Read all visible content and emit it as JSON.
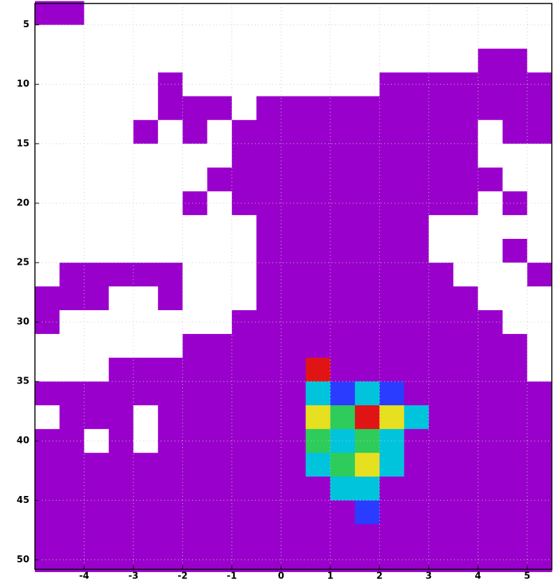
{
  "chart_data": {
    "type": "heatmap",
    "x": [
      -4.75,
      -4.25,
      -3.75,
      -3.25,
      -2.75,
      -2.25,
      -1.75,
      -1.25,
      -0.75,
      -0.25,
      0.25,
      0.75,
      1.25,
      1.75,
      2.25,
      2.75,
      3.25,
      3.75,
      4.25,
      4.75,
      5.25
    ],
    "y": [
      4,
      6,
      8,
      10,
      12,
      14,
      16,
      18,
      20,
      22,
      24,
      26,
      28,
      30,
      32,
      34,
      36,
      38,
      40,
      42,
      44,
      46,
      48,
      50
    ],
    "cell_width": 0.5,
    "cell_height": 2,
    "values": [
      [
        1,
        1,
        0,
        0,
        0,
        0,
        0,
        0,
        0,
        0,
        0,
        0,
        0,
        0,
        0,
        0,
        0,
        0,
        0,
        0,
        0
      ],
      [
        0,
        0,
        0,
        0,
        0,
        0,
        0,
        0,
        0,
        0,
        0,
        0,
        0,
        0,
        0,
        0,
        0,
        0,
        0,
        0,
        0
      ],
      [
        0,
        0,
        0,
        0,
        0,
        0,
        0,
        0,
        0,
        0,
        0,
        0,
        0,
        0,
        0,
        0,
        0,
        0,
        1,
        1,
        0
      ],
      [
        0,
        0,
        0,
        0,
        0,
        1,
        0,
        0,
        0,
        0,
        0,
        0,
        0,
        0,
        1,
        1,
        1,
        1,
        1,
        1,
        1
      ],
      [
        0,
        0,
        0,
        0,
        0,
        1,
        1,
        1,
        0,
        1,
        1,
        1,
        1,
        1,
        1,
        1,
        1,
        1,
        1,
        1,
        1
      ],
      [
        0,
        0,
        0,
        0,
        1,
        0,
        1,
        0,
        1,
        1,
        1,
        1,
        1,
        1,
        1,
        1,
        1,
        1,
        0,
        1,
        1
      ],
      [
        0,
        0,
        0,
        0,
        0,
        0,
        0,
        0,
        1,
        1,
        1,
        1,
        1,
        1,
        1,
        1,
        1,
        1,
        0,
        0,
        0
      ],
      [
        0,
        0,
        0,
        0,
        0,
        0,
        0,
        1,
        1,
        1,
        1,
        1,
        1,
        1,
        1,
        1,
        1,
        1,
        1,
        0,
        0
      ],
      [
        0,
        0,
        0,
        0,
        0,
        0,
        1,
        0,
        1,
        1,
        1,
        1,
        1,
        1,
        1,
        1,
        1,
        1,
        0,
        1,
        0
      ],
      [
        0,
        0,
        0,
        0,
        0,
        0,
        0,
        0,
        0,
        1,
        1,
        1,
        1,
        1,
        1,
        1,
        0,
        0,
        0,
        0,
        0
      ],
      [
        0,
        0,
        0,
        0,
        0,
        0,
        0,
        0,
        0,
        1,
        1,
        1,
        1,
        1,
        1,
        1,
        0,
        0,
        0,
        1,
        0
      ],
      [
        0,
        1,
        1,
        1,
        1,
        1,
        0,
        0,
        0,
        1,
        1,
        1,
        1,
        1,
        1,
        1,
        1,
        0,
        0,
        0,
        1
      ],
      [
        1,
        1,
        1,
        0,
        0,
        1,
        0,
        0,
        0,
        1,
        1,
        1,
        1,
        1,
        1,
        1,
        1,
        1,
        0,
        0,
        0
      ],
      [
        1,
        0,
        0,
        0,
        0,
        0,
        0,
        0,
        1,
        1,
        1,
        1,
        1,
        1,
        1,
        1,
        1,
        1,
        1,
        0,
        0
      ],
      [
        0,
        0,
        0,
        0,
        0,
        0,
        1,
        1,
        1,
        1,
        1,
        1,
        1,
        1,
        1,
        1,
        1,
        1,
        1,
        1,
        0
      ],
      [
        0,
        0,
        0,
        1,
        1,
        1,
        1,
        1,
        1,
        1,
        1,
        6,
        1,
        1,
        1,
        1,
        1,
        1,
        1,
        1,
        0
      ],
      [
        1,
        1,
        1,
        1,
        1,
        1,
        1,
        1,
        1,
        1,
        1,
        3,
        2,
        3,
        2,
        1,
        1,
        1,
        1,
        1,
        1
      ],
      [
        0,
        1,
        1,
        1,
        0,
        1,
        1,
        1,
        1,
        1,
        1,
        5,
        4,
        6,
        5,
        3,
        1,
        1,
        1,
        1,
        1
      ],
      [
        1,
        1,
        0,
        1,
        0,
        1,
        1,
        1,
        1,
        1,
        1,
        4,
        3,
        4,
        3,
        1,
        1,
        1,
        1,
        1,
        1
      ],
      [
        1,
        1,
        1,
        1,
        1,
        1,
        1,
        1,
        1,
        1,
        1,
        3,
        4,
        5,
        3,
        1,
        1,
        1,
        1,
        1,
        1
      ],
      [
        1,
        1,
        1,
        1,
        1,
        1,
        1,
        1,
        1,
        1,
        1,
        1,
        3,
        3,
        1,
        1,
        1,
        1,
        1,
        1,
        1
      ],
      [
        1,
        1,
        1,
        1,
        1,
        1,
        1,
        1,
        1,
        1,
        1,
        1,
        1,
        2,
        1,
        1,
        1,
        1,
        1,
        1,
        1
      ],
      [
        1,
        1,
        1,
        1,
        1,
        1,
        1,
        1,
        1,
        1,
        1,
        1,
        1,
        1,
        1,
        1,
        1,
        1,
        1,
        1,
        1
      ],
      [
        1,
        1,
        1,
        1,
        1,
        1,
        1,
        1,
        1,
        1,
        1,
        1,
        1,
        1,
        1,
        1,
        1,
        1,
        1,
        1,
        1
      ]
    ],
    "colors": [
      "#ffffff",
      "#9a00cc",
      "#2a3cff",
      "#00c4dc",
      "#2ecc5a",
      "#e6e020",
      "#e01414"
    ],
    "xlim": [
      -5,
      5.5
    ],
    "ylim": [
      50.8,
      3.2
    ],
    "xticks": [
      -4,
      -3,
      -2,
      -1,
      0,
      1,
      2,
      3,
      4,
      5
    ],
    "yticks": [
      5,
      10,
      15,
      20,
      25,
      30,
      35,
      40,
      45,
      50
    ],
    "grid": true
  }
}
